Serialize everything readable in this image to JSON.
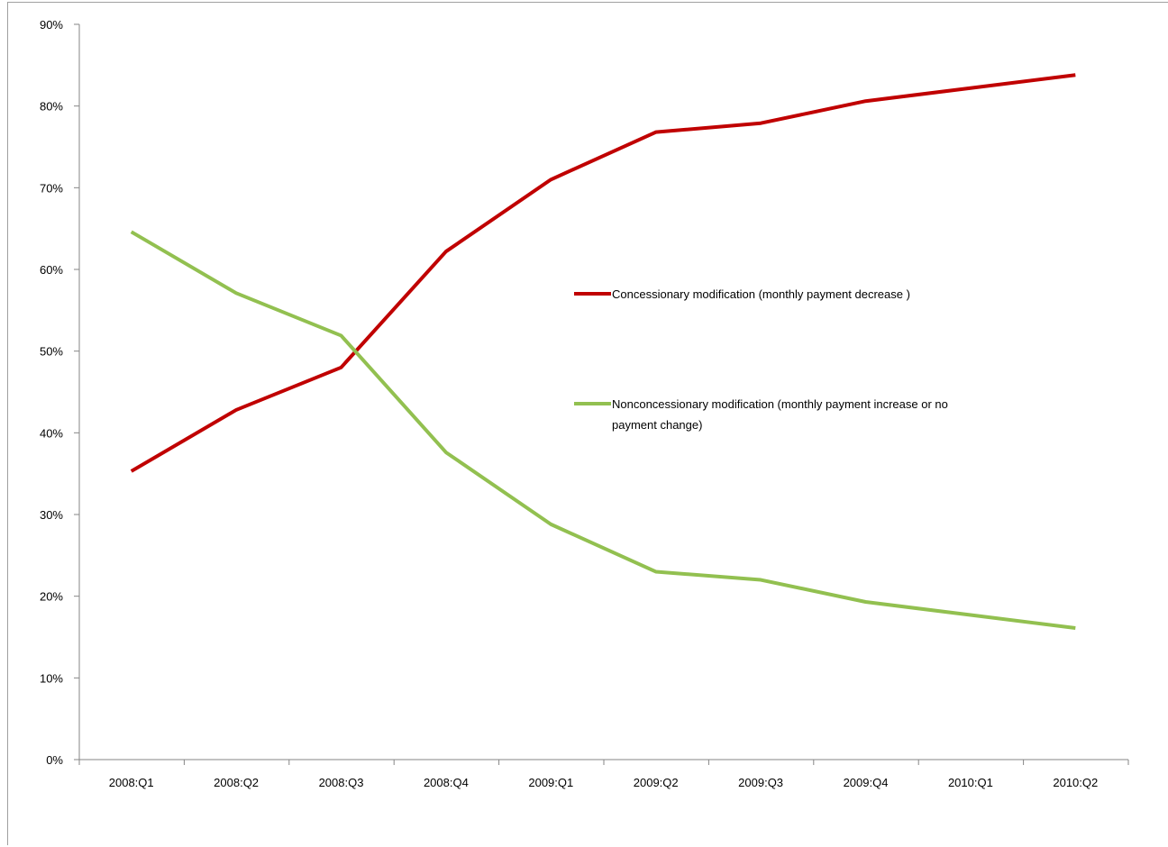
{
  "chart_data": {
    "type": "line",
    "title": "",
    "xlabel": "",
    "ylabel": "",
    "categories": [
      "2008:Q1",
      "2008:Q2",
      "2008:Q3",
      "2008:Q4",
      "2009:Q1",
      "2009:Q2",
      "2009:Q3",
      "2009:Q4",
      "2010:Q1",
      "2010:Q2"
    ],
    "ylim": [
      0,
      0.9
    ],
    "y_ticks": [
      0,
      0.1,
      0.2,
      0.3,
      0.4,
      0.5,
      0.6,
      0.7,
      0.8,
      0.9
    ],
    "y_tick_labels": [
      "0%",
      "10%",
      "20%",
      "30%",
      "40%",
      "50%",
      "60%",
      "70%",
      "80%",
      "90%"
    ],
    "grid": false,
    "legend_position": "center-right",
    "series": [
      {
        "name": "Concessionary modification (monthly payment decrease )",
        "legend_lines": [
          "Concessionary modification (monthly payment decrease )"
        ],
        "color": "#c00000",
        "values": [
          0.353,
          0.428,
          0.48,
          0.622,
          0.71,
          0.768,
          0.779,
          0.806,
          0.822,
          0.838
        ]
      },
      {
        "name": "Nonconcessionary modification (monthly payment increase or no payment change)",
        "legend_lines": [
          "Nonconcessionary modification (monthly payment increase or no",
          "payment change)"
        ],
        "color": "#92c050",
        "values": [
          0.646,
          0.571,
          0.519,
          0.376,
          0.288,
          0.23,
          0.22,
          0.193,
          0.177,
          0.161
        ]
      }
    ]
  }
}
